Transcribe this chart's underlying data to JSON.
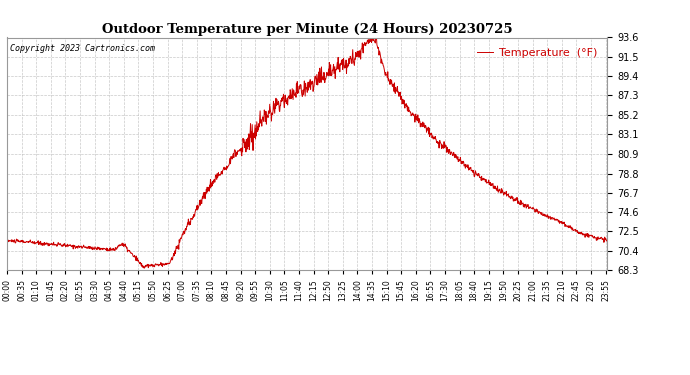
{
  "title": "Outdoor Temperature per Minute (24 Hours) 20230725",
  "copyright_text": "Copyright 2023 Cartronics.com",
  "legend_label": "Temperature  (°F)",
  "line_color": "#cc0000",
  "background_color": "#ffffff",
  "grid_color": "#bbbbbb",
  "yticks": [
    68.3,
    70.4,
    72.5,
    74.6,
    76.7,
    78.8,
    80.9,
    83.1,
    85.2,
    87.3,
    89.4,
    91.5,
    93.6
  ],
  "ymin": 68.3,
  "ymax": 93.6,
  "total_minutes": 1440,
  "x_tick_interval_minutes": 35,
  "x_tick_labels": [
    "00:00",
    "00:35",
    "01:10",
    "01:45",
    "02:20",
    "02:55",
    "03:30",
    "04:05",
    "04:40",
    "05:15",
    "05:50",
    "06:25",
    "07:00",
    "07:35",
    "08:10",
    "08:45",
    "09:20",
    "09:55",
    "10:30",
    "11:05",
    "11:40",
    "12:15",
    "12:50",
    "13:25",
    "14:00",
    "14:35",
    "15:10",
    "15:45",
    "16:20",
    "16:55",
    "17:30",
    "18:05",
    "18:40",
    "19:15",
    "19:50",
    "20:25",
    "21:00",
    "21:35",
    "22:10",
    "22:45",
    "23:20",
    "23:55"
  ],
  "figwidth": 6.9,
  "figheight": 3.75,
  "dpi": 100
}
